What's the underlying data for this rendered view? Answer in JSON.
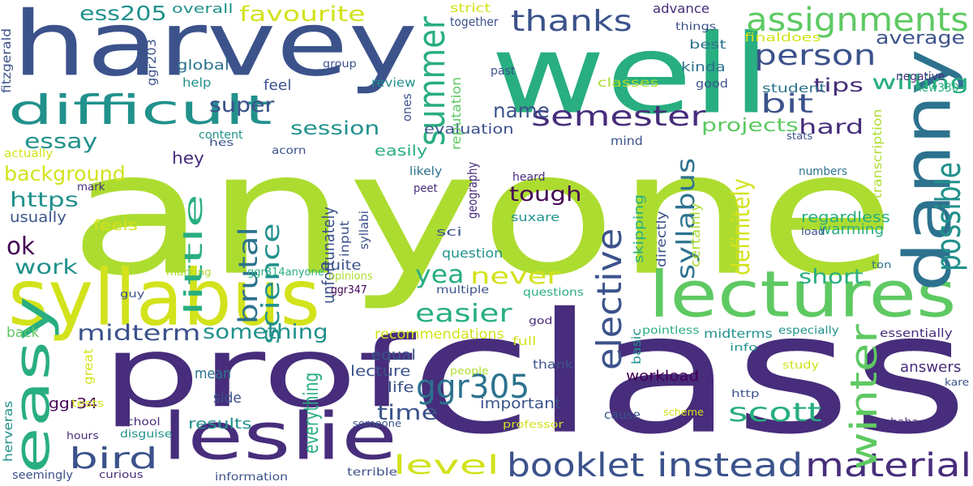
{
  "palette": {
    "c1": "#440154",
    "c2": "#472d7b",
    "c3": "#3b528b",
    "c4": "#2c728e",
    "c5": "#21918c",
    "c6": "#28ae80",
    "c7": "#5ec962",
    "c8": "#addc30",
    "c9": "#d2e21b",
    "c10": "#fde725"
  },
  "words": [
    {
      "text": "anyone",
      "color": "c8"
    },
    {
      "text": "class",
      "color": "c2"
    },
    {
      "text": "harvey",
      "color": "c3"
    },
    {
      "text": "well",
      "color": "c6"
    },
    {
      "text": "prof",
      "color": "c2"
    },
    {
      "text": "syllabus",
      "color": "c9"
    },
    {
      "text": "lectures",
      "color": "c7"
    },
    {
      "text": "leslie",
      "color": "c2"
    },
    {
      "text": "difficult",
      "color": "c5"
    },
    {
      "text": "danny",
      "color": "c4"
    },
    {
      "text": "easy",
      "color": "c6"
    },
    {
      "text": "assignments",
      "color": "c7"
    },
    {
      "text": "material",
      "color": "c2"
    },
    {
      "text": "instead",
      "color": "c3"
    },
    {
      "text": "booklet",
      "color": "c3"
    },
    {
      "text": "ggr305",
      "color": "c4"
    },
    {
      "text": "semester",
      "color": "c2"
    },
    {
      "text": "person",
      "color": "c3"
    },
    {
      "text": "thanks",
      "color": "c3"
    },
    {
      "text": "summer",
      "color": "c6"
    },
    {
      "text": "winter",
      "color": "c7"
    },
    {
      "text": "possible",
      "color": "c5"
    },
    {
      "text": "elective",
      "color": "c3"
    },
    {
      "text": "bird",
      "color": "c3"
    },
    {
      "text": "level",
      "color": "c9"
    },
    {
      "text": "easier",
      "color": "c6"
    },
    {
      "text": "ok",
      "color": "c1"
    },
    {
      "text": "yea",
      "color": "c6"
    },
    {
      "text": "never",
      "color": "c9"
    },
    {
      "text": "midterm",
      "color": "c3"
    },
    {
      "text": "something",
      "color": "c5"
    },
    {
      "text": "bit",
      "color": "c3"
    },
    {
      "text": "scott",
      "color": "c6"
    },
    {
      "text": "time",
      "color": "c3"
    },
    {
      "text": "work",
      "color": "c5"
    },
    {
      "text": "science",
      "color": "c5"
    },
    {
      "text": "brutal",
      "color": "c4"
    },
    {
      "text": "little",
      "color": "c6"
    },
    {
      "text": "super",
      "color": "c3"
    },
    {
      "text": "essay",
      "color": "c5"
    },
    {
      "text": "background",
      "color": "c9"
    },
    {
      "text": "tough",
      "color": "c1"
    },
    {
      "text": "definitely",
      "color": "c9"
    },
    {
      "text": "syllabus",
      "color": "c4"
    },
    {
      "text": "short",
      "color": "c6"
    },
    {
      "text": "hard",
      "color": "c2"
    },
    {
      "text": "tips",
      "color": "c2"
    },
    {
      "text": "name",
      "color": "c3"
    },
    {
      "text": "session",
      "color": "c5"
    },
    {
      "text": "projects",
      "color": "c7"
    },
    {
      "text": "willing",
      "color": "c6"
    },
    {
      "text": "average",
      "color": "c3"
    },
    {
      "text": "favourite",
      "color": "c9"
    },
    {
      "text": "ess205",
      "color": "c5"
    },
    {
      "text": "https",
      "color": "c5"
    },
    {
      "text": "usually",
      "color": "c3"
    },
    {
      "text": "feels",
      "color": "c9"
    },
    {
      "text": "hey",
      "color": "c2"
    },
    {
      "text": "super",
      "color": "c3"
    },
    {
      "text": "easily",
      "color": "c6"
    },
    {
      "text": "regardless",
      "color": "c6"
    },
    {
      "text": "warming",
      "color": "c6"
    },
    {
      "text": "workload",
      "color": "c1"
    },
    {
      "text": "answers",
      "color": "c2"
    },
    {
      "text": "recommendations",
      "color": "c9"
    },
    {
      "text": "equal",
      "color": "c3"
    },
    {
      "text": "lecture",
      "color": "c3"
    },
    {
      "text": "life",
      "color": "c3"
    },
    {
      "text": "important",
      "color": "c3"
    },
    {
      "text": "everything",
      "color": "c6"
    },
    {
      "text": "results",
      "color": "c5"
    },
    {
      "text": "side",
      "color": "c3"
    },
    {
      "text": "mean",
      "color": "c4"
    },
    {
      "text": "ggr34",
      "color": "c1"
    },
    {
      "text": "back",
      "color": "c7"
    },
    {
      "text": "question",
      "color": "c5"
    },
    {
      "text": "quite",
      "color": "c3"
    },
    {
      "text": "unfortunately",
      "color": "c3"
    },
    {
      "text": "evaluation",
      "color": "c3"
    },
    {
      "text": "review",
      "color": "c5"
    },
    {
      "text": "strict",
      "color": "c9"
    },
    {
      "text": "together",
      "color": "c3"
    },
    {
      "text": "advance",
      "color": "c2"
    },
    {
      "text": "things",
      "color": "c3"
    },
    {
      "text": "best",
      "color": "c4"
    },
    {
      "text": "finaldoes",
      "color": "c9"
    },
    {
      "text": "kinda",
      "color": "c4"
    },
    {
      "text": "classes",
      "color": "c8"
    },
    {
      "text": "student",
      "color": "c4"
    },
    {
      "text": "negative",
      "color": "c2"
    },
    {
      "text": "new330",
      "color": "c6"
    },
    {
      "text": "stats",
      "color": "c3"
    },
    {
      "text": "numbers",
      "color": "c4"
    },
    {
      "text": "transcription",
      "color": "c8"
    },
    {
      "text": "overall",
      "color": "c5"
    },
    {
      "text": "global",
      "color": "c4"
    },
    {
      "text": "help",
      "color": "c5"
    },
    {
      "text": "feel",
      "color": "c3"
    },
    {
      "text": "fitzgerald",
      "color": "c3"
    },
    {
      "text": "ggr203",
      "color": "c3"
    },
    {
      "text": "group",
      "color": "c3"
    },
    {
      "text": "past",
      "color": "c3"
    },
    {
      "text": "good",
      "color": "c3"
    },
    {
      "text": "reputation",
      "color": "c7"
    },
    {
      "text": "ones",
      "color": "c3"
    },
    {
      "text": "content",
      "color": "c5"
    },
    {
      "text": "hes",
      "color": "c3"
    },
    {
      "text": "acorn",
      "color": "c3"
    },
    {
      "text": "actually",
      "color": "c9"
    },
    {
      "text": "mind",
      "color": "c3"
    },
    {
      "text": "heard",
      "color": "c2"
    },
    {
      "text": "likely",
      "color": "c4"
    },
    {
      "text": "peet",
      "color": "c2"
    },
    {
      "text": "mark",
      "color": "c2"
    },
    {
      "text": "geography",
      "color": "c2"
    },
    {
      "text": "skipping",
      "color": "c6"
    },
    {
      "text": "suxare",
      "color": "c5"
    },
    {
      "text": "directly",
      "color": "c3"
    },
    {
      "text": "certainly",
      "color": "c8"
    },
    {
      "text": "load",
      "color": "c3"
    },
    {
      "text": "ton",
      "color": "c4"
    },
    {
      "text": "sci",
      "color": "c3"
    },
    {
      "text": "input",
      "color": "c3"
    },
    {
      "text": "syllabi",
      "color": "c3"
    },
    {
      "text": "ggr314anyone",
      "color": "c6"
    },
    {
      "text": "opinions",
      "color": "c8"
    },
    {
      "text": "marking",
      "color": "c8"
    },
    {
      "text": "ggr347",
      "color": "c1"
    },
    {
      "text": "multiple",
      "color": "c3"
    },
    {
      "text": "questions",
      "color": "c6"
    },
    {
      "text": "guy",
      "color": "c3"
    },
    {
      "text": "god",
      "color": "c2"
    },
    {
      "text": "full",
      "color": "c9"
    },
    {
      "text": "pointless",
      "color": "c6"
    },
    {
      "text": "midterms",
      "color": "c5"
    },
    {
      "text": "especially",
      "color": "c5"
    },
    {
      "text": "essentially",
      "color": "c2"
    },
    {
      "text": "basic",
      "color": "c5"
    },
    {
      "text": "info",
      "color": "c5"
    },
    {
      "text": "great",
      "color": "c9"
    },
    {
      "text": "thank",
      "color": "c3"
    },
    {
      "text": "cause",
      "color": "c3"
    },
    {
      "text": "people",
      "color": "c8"
    },
    {
      "text": "study",
      "color": "c9"
    },
    {
      "text": "http",
      "color": "c3"
    },
    {
      "text": "kare",
      "color": "c3"
    },
    {
      "text": "tests",
      "color": "c9"
    },
    {
      "text": "school",
      "color": "c2"
    },
    {
      "text": "herveras",
      "color": "c5"
    },
    {
      "text": "disguise",
      "color": "c5"
    },
    {
      "text": "hours",
      "color": "c2"
    },
    {
      "text": "someone",
      "color": "c3"
    },
    {
      "text": "professor",
      "color": "c9"
    },
    {
      "text": "scheme",
      "color": "c9"
    },
    {
      "text": "haha",
      "color": "c2"
    },
    {
      "text": "seemingly",
      "color": "c3"
    },
    {
      "text": "curious",
      "color": "c2"
    },
    {
      "text": "information",
      "color": "c3"
    },
    {
      "text": "terrible",
      "color": "c3"
    }
  ]
}
